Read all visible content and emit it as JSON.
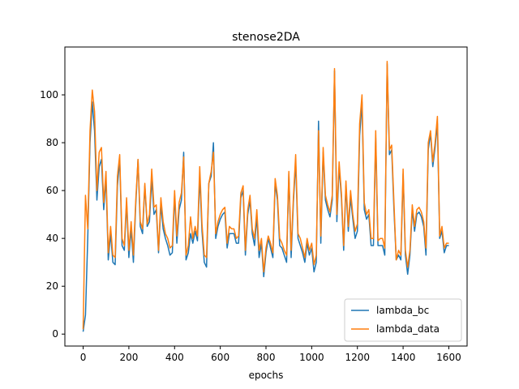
{
  "chart_data": {
    "type": "line",
    "title": "stenose2DA",
    "xlabel": "epochs",
    "ylabel": "",
    "xlim": [
      -80,
      1680
    ],
    "ylim": [
      -5,
      120
    ],
    "xticks": [
      0,
      200,
      400,
      600,
      800,
      1000,
      1200,
      1400,
      1600
    ],
    "yticks": [
      0,
      20,
      40,
      60,
      80,
      100
    ],
    "grid": false,
    "legend_position": "lower right",
    "series": [
      {
        "name": "lambda_bc",
        "color": "#1f77b4",
        "x": [
          0,
          10,
          20,
          30,
          40,
          50,
          60,
          70,
          80,
          90,
          100,
          110,
          120,
          130,
          140,
          150,
          160,
          170,
          180,
          190,
          200,
          210,
          220,
          230,
          240,
          250,
          260,
          270,
          280,
          290,
          300,
          310,
          320,
          330,
          340,
          350,
          360,
          370,
          380,
          390,
          400,
          410,
          420,
          430,
          440,
          450,
          460,
          470,
          480,
          490,
          500,
          510,
          520,
          530,
          540,
          550,
          560,
          570,
          580,
          590,
          600,
          610,
          620,
          630,
          640,
          650,
          660,
          670,
          680,
          690,
          700,
          710,
          720,
          730,
          740,
          750,
          760,
          770,
          780,
          790,
          800,
          810,
          820,
          830,
          840,
          850,
          860,
          870,
          880,
          890,
          900,
          910,
          920,
          930,
          940,
          950,
          960,
          970,
          980,
          990,
          1000,
          1010,
          1020,
          1030,
          1040,
          1050,
          1060,
          1070,
          1080,
          1090,
          1100,
          1110,
          1120,
          1130,
          1140,
          1150,
          1160,
          1170,
          1180,
          1190,
          1200,
          1210,
          1220,
          1230,
          1240,
          1250,
          1260,
          1270,
          1280,
          1290,
          1300,
          1310,
          1320,
          1330,
          1340,
          1350,
          1360,
          1370,
          1380,
          1390,
          1400,
          1410,
          1420,
          1430,
          1440,
          1450,
          1460,
          1470,
          1480,
          1490,
          1500,
          1510,
          1520,
          1530,
          1540,
          1550,
          1560,
          1570,
          1580,
          1590,
          1600
        ],
        "values": [
          1,
          8,
          40,
          80,
          97,
          85,
          56,
          70,
          73,
          52,
          65,
          31,
          42,
          30,
          29,
          62,
          73,
          37,
          35,
          55,
          32,
          44,
          30,
          54,
          73,
          45,
          42,
          62,
          45,
          47,
          65,
          50,
          52,
          34,
          54,
          44,
          40,
          37,
          33,
          34,
          58,
          38,
          52,
          56,
          76,
          31,
          34,
          42,
          38,
          43,
          39,
          66,
          43,
          30,
          28,
          63,
          66,
          80,
          40,
          45,
          48,
          50,
          51,
          36,
          42,
          42,
          42,
          38,
          38,
          57,
          60,
          33,
          50,
          56,
          42,
          37,
          49,
          32,
          38,
          24,
          34,
          40,
          36,
          32,
          63,
          56,
          37,
          36,
          33,
          30,
          67,
          32,
          55,
          72,
          40,
          37,
          34,
          30,
          38,
          33,
          36,
          26,
          30,
          89,
          38,
          76,
          56,
          52,
          49,
          56,
          110,
          47,
          70,
          57,
          35,
          62,
          43,
          57,
          48,
          40,
          43,
          83,
          97,
          52,
          48,
          50,
          37,
          37,
          82,
          37,
          37,
          37,
          33,
          113,
          75,
          77,
          52,
          31,
          33,
          31,
          67,
          33,
          25,
          33,
          52,
          43,
          50,
          51,
          49,
          45,
          33,
          77,
          84,
          70,
          78,
          88,
          40,
          43,
          34,
          37,
          37
        ]
      },
      {
        "name": "lambda_data",
        "color": "#ff7f0e",
        "x": [
          0,
          10,
          20,
          30,
          40,
          50,
          60,
          70,
          80,
          90,
          100,
          110,
          120,
          130,
          140,
          150,
          160,
          170,
          180,
          190,
          200,
          210,
          220,
          230,
          240,
          250,
          260,
          270,
          280,
          290,
          300,
          310,
          320,
          330,
          340,
          350,
          360,
          370,
          380,
          390,
          400,
          410,
          420,
          430,
          440,
          450,
          460,
          470,
          480,
          490,
          500,
          510,
          520,
          530,
          540,
          550,
          560,
          570,
          580,
          590,
          600,
          610,
          620,
          630,
          640,
          650,
          660,
          670,
          680,
          690,
          700,
          710,
          720,
          730,
          740,
          750,
          760,
          770,
          780,
          790,
          800,
          810,
          820,
          830,
          840,
          850,
          860,
          870,
          880,
          890,
          900,
          910,
          920,
          930,
          940,
          950,
          960,
          970,
          980,
          990,
          1000,
          1010,
          1020,
          1030,
          1040,
          1050,
          1060,
          1070,
          1080,
          1090,
          1100,
          1110,
          1120,
          1130,
          1140,
          1150,
          1160,
          1170,
          1180,
          1190,
          1200,
          1210,
          1220,
          1230,
          1240,
          1250,
          1260,
          1270,
          1280,
          1290,
          1300,
          1310,
          1320,
          1330,
          1340,
          1350,
          1360,
          1370,
          1380,
          1390,
          1400,
          1410,
          1420,
          1430,
          1440,
          1450,
          1460,
          1470,
          1480,
          1490,
          1500,
          1510,
          1520,
          1530,
          1540,
          1550,
          1560,
          1570,
          1580,
          1590,
          1600
        ],
        "values": [
          2,
          58,
          44,
          85,
          102,
          93,
          60,
          76,
          78,
          55,
          68,
          34,
          45,
          33,
          32,
          66,
          75,
          40,
          37,
          57,
          35,
          47,
          33,
          56,
          73,
          47,
          44,
          63,
          46,
          50,
          69,
          53,
          54,
          35,
          57,
          47,
          42,
          40,
          36,
          37,
          60,
          41,
          55,
          59,
          74,
          33,
          37,
          49,
          40,
          45,
          41,
          70,
          46,
          33,
          32,
          63,
          68,
          76,
          42,
          47,
          50,
          52,
          53,
          38,
          45,
          44,
          44,
          40,
          41,
          59,
          62,
          35,
          52,
          58,
          44,
          40,
          52,
          35,
          40,
          26,
          36,
          41,
          38,
          34,
          65,
          58,
          40,
          38,
          35,
          33,
          68,
          35,
          57,
          75,
          42,
          40,
          36,
          32,
          40,
          35,
          38,
          29,
          33,
          85,
          41,
          78,
          58,
          54,
          51,
          58,
          111,
          50,
          72,
          59,
          37,
          64,
          45,
          60,
          50,
          43,
          46,
          88,
          100,
          55,
          50,
          52,
          40,
          40,
          85,
          39,
          40,
          40,
          36,
          114,
          77,
          79,
          55,
          31,
          35,
          33,
          69,
          35,
          28,
          35,
          54,
          45,
          52,
          53,
          51,
          47,
          36,
          80,
          85,
          72,
          80,
          91,
          41,
          45,
          36,
          38,
          38
        ]
      }
    ]
  }
}
